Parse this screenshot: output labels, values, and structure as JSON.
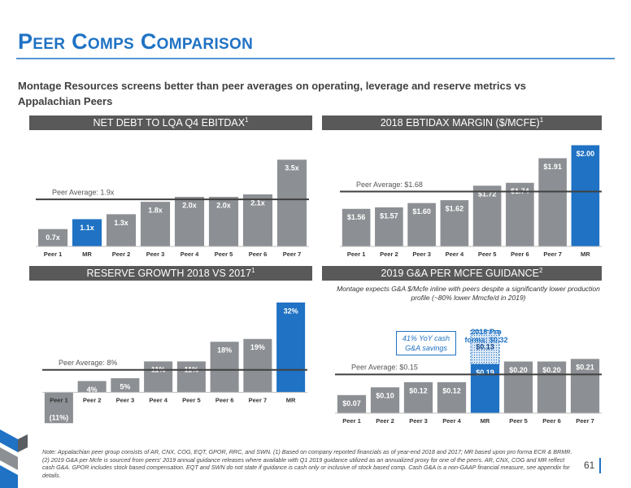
{
  "title": "Peer Comps Comparison",
  "subtitle": "Montage Resources screens better than peer averages on operating, leverage and reserve metrics vs Appalachian Peers",
  "footnote": "Note: Appalachian peer group consists of AR, CNX, COG, EQT, GPOR, RRC, and SWN. (1) Based on company reported financials as of year-end 2018 and 2017; MR based upon pro forma ECR & BRMR. (2) 2019 G&A per Mcfe is sourced from peers' 2019 annual guidance releases where available with Q1 2019 guidance utilized as an annualized proxy for one of the peers. AR, CNX, COG and MR reflect cash G&A. GPOR includes stock based compensation. EQT and SWN do not state if guidance is cash only or inclusive of stock based comp. Cash G&A is a non-GAAP financial measure, see appendix for details.",
  "page_number": "61",
  "chart_data": [
    {
      "type": "bar",
      "title": "NET DEBT TO LQA Q4 EBITDAX",
      "title_note": "1",
      "categories": [
        "Peer 1",
        "MR",
        "Peer 2",
        "Peer 3",
        "Peer 4",
        "Peer 5",
        "Peer 6",
        "Peer 7"
      ],
      "values": [
        0.7,
        1.1,
        1.3,
        1.8,
        2.0,
        2.0,
        2.1,
        3.5
      ],
      "value_labels": [
        "0.7x",
        "1.1x",
        "1.3x",
        "1.8x",
        "2.0x",
        "2.0x",
        "2.1x",
        "3.5x"
      ],
      "colors": [
        "#8c8f93",
        "#1f72c4",
        "#8c8f93",
        "#8c8f93",
        "#8c8f93",
        "#8c8f93",
        "#8c8f93",
        "#8c8f93"
      ],
      "ylim": [
        0,
        4.2
      ],
      "reference": {
        "value": 1.9,
        "label": "Peer Average: 1.9x"
      }
    },
    {
      "type": "bar",
      "title": "2018 EBTIDAX MARGIN ($/MCFE)",
      "title_note": "1",
      "categories": [
        "Peer 1",
        "Peer 2",
        "Peer 3",
        "Peer 4",
        "Peer 5",
        "Peer 6",
        "Peer 7",
        "MR"
      ],
      "values": [
        1.56,
        1.57,
        1.6,
        1.62,
        1.72,
        1.74,
        1.91,
        2.0
      ],
      "value_labels": [
        "$1.56",
        "$1.57",
        "$1.60",
        "$1.62",
        "$1.72",
        "$1.74",
        "$1.91",
        "$2.00"
      ],
      "colors": [
        "#8c8f93",
        "#8c8f93",
        "#8c8f93",
        "#8c8f93",
        "#8c8f93",
        "#8c8f93",
        "#8c8f93",
        "#1f72c4"
      ],
      "ylim": [
        1.3,
        2.02
      ],
      "reference": {
        "value": 1.68,
        "label": "Peer Average: $1.68"
      }
    },
    {
      "type": "bar",
      "title": "RESERVE GROWTH 2018 VS 2017",
      "title_note": "1",
      "categories": [
        "Peer 1",
        "Peer 2",
        "Peer 3",
        "Peer 4",
        "Peer 5",
        "Peer 6",
        "Peer 7",
        "MR"
      ],
      "values": [
        -11,
        4,
        5,
        11,
        11,
        18,
        19,
        32
      ],
      "value_labels": [
        "(11%)",
        "4%",
        "5%",
        "11%",
        "11%",
        "18%",
        "19%",
        "32%"
      ],
      "colors": [
        "#8c8f93",
        "#8c8f93",
        "#8c8f93",
        "#8c8f93",
        "#8c8f93",
        "#8c8f93",
        "#8c8f93",
        "#1f72c4"
      ],
      "ylim": [
        -11.5,
        34
      ],
      "reference": {
        "value": 8,
        "label": "Peer Average: 8%"
      }
    },
    {
      "type": "bar",
      "title": "2019 G&A PER MCFE GUIDANCE",
      "title_note": "2",
      "note": "Montage expects G&A $/Mcfe inline with peers despite a significantly lower production profile (~80% lower Mmcfe/d in 2019)",
      "categories": [
        "Peer 1",
        "Peer 2",
        "Peer 3",
        "Peer 4",
        "MR",
        "Peer 5",
        "Peer 6",
        "Peer 7"
      ],
      "values": [
        0.07,
        0.1,
        0.12,
        0.12,
        0.19,
        0.2,
        0.2,
        0.21
      ],
      "value_labels": [
        "$0.07",
        "$0.10",
        "$0.12",
        "$0.12",
        "$0.19",
        "$0.20",
        "$0.20",
        "$0.21"
      ],
      "colors": [
        "#8c8f93",
        "#8c8f93",
        "#8c8f93",
        "#8c8f93",
        "#1f72c4",
        "#8c8f93",
        "#8c8f93",
        "#8c8f93"
      ],
      "ylim": [
        0,
        0.34
      ],
      "reference": {
        "value": 0.15,
        "label": "Peer Average: $0.15"
      },
      "pro_forma": {
        "value": 0.32,
        "label": "2018 Pro forma: $0.32",
        "delta": 0.13,
        "delta_label": "$0.13",
        "callout": "41% YoY cash G&A savings"
      }
    }
  ]
}
